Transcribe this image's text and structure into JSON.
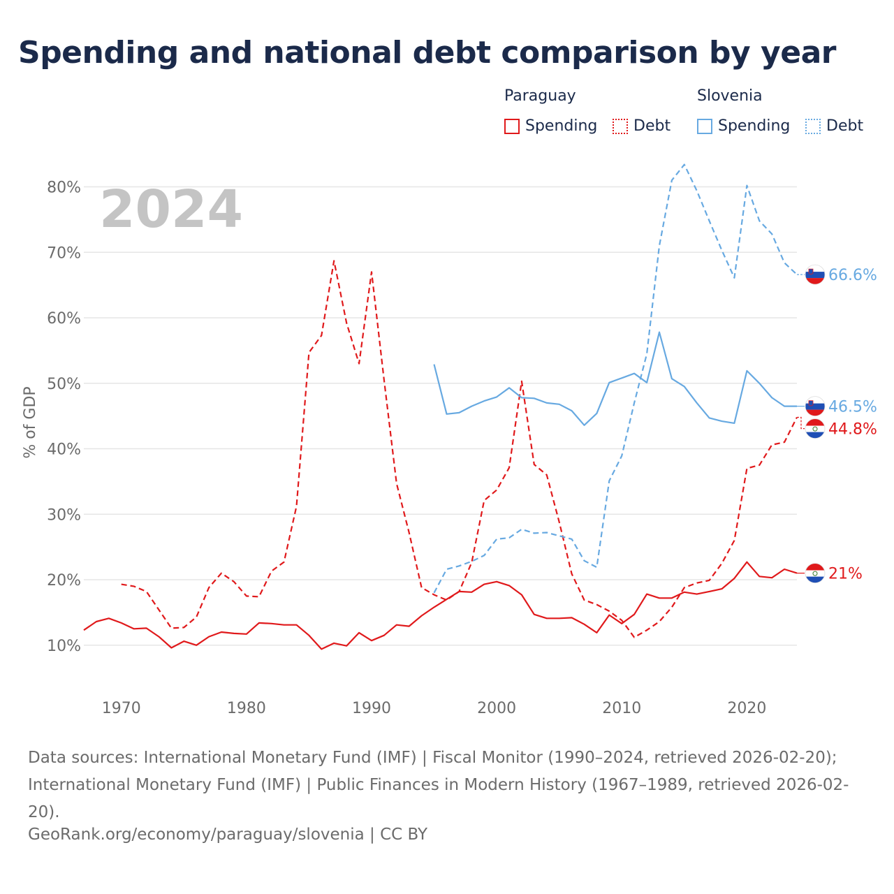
{
  "title": "Spending and national debt comparison by year",
  "legend": {
    "group_a": "Paraguay",
    "group_b": "Slovenia",
    "spending": "Spending",
    "debt": "Debt"
  },
  "colors": {
    "paraguay": "#e0191b",
    "slovenia": "#67a9e1",
    "grid": "#e6e6e6",
    "axis_text": "#6b6b6b",
    "year_watermark": "#c4c4c4"
  },
  "source_text": "Data sources: International Monetary Fund (IMF) | Fiscal Monitor (1990–2024, retrieved 2026-02-20); International Monetary Fund (IMF) | Public Finances in Modern History (1967–1989, retrieved 2026-02-20).",
  "attribution": "GeoRank.org/economy/paraguay/slovenia | CC BY",
  "chart_data": {
    "type": "line",
    "title": "Spending and national debt comparison by year",
    "year_label": "2024",
    "xlabel": "",
    "ylabel": "% of GDP",
    "xlim": [
      1967,
      2024
    ],
    "ylim": [
      4,
      84
    ],
    "x_ticks": [
      1970,
      1980,
      1990,
      2000,
      2010,
      2020
    ],
    "y_ticks": [
      10,
      20,
      30,
      40,
      50,
      60,
      70,
      80
    ],
    "y_tick_labels": [
      "10%",
      "20%",
      "30%",
      "40%",
      "50%",
      "60%",
      "70%",
      "80%"
    ],
    "grid": true,
    "legend_position": "top-right",
    "series": [
      {
        "name": "Paraguay Spending",
        "country": "Paraguay",
        "metric": "Spending",
        "style": "solid",
        "end_label": "21%",
        "x": [
          1967,
          1968,
          1969,
          1970,
          1971,
          1972,
          1973,
          1974,
          1975,
          1976,
          1977,
          1978,
          1979,
          1980,
          1981,
          1982,
          1983,
          1984,
          1985,
          1986,
          1987,
          1988,
          1989,
          1990,
          1991,
          1992,
          1993,
          1994,
          1995,
          1996,
          1997,
          1998,
          1999,
          2000,
          2001,
          2002,
          2003,
          2004,
          2005,
          2006,
          2007,
          2008,
          2009,
          2010,
          2011,
          2012,
          2013,
          2014,
          2015,
          2016,
          2017,
          2018,
          2019,
          2020,
          2021,
          2022,
          2023,
          2024
        ],
        "values": [
          12.3,
          13.6,
          14.1,
          13.4,
          12.5,
          12.6,
          11.3,
          9.6,
          10.6,
          10.0,
          11.3,
          12.0,
          11.8,
          11.7,
          13.4,
          13.3,
          13.1,
          13.1,
          11.5,
          9.4,
          10.3,
          9.9,
          11.9,
          10.7,
          11.5,
          13.1,
          12.9,
          14.5,
          15.8,
          17.0,
          18.2,
          18.1,
          19.3,
          19.7,
          19.1,
          17.7,
          14.7,
          14.1,
          14.1,
          14.2,
          13.2,
          11.9,
          14.6,
          13.3,
          14.7,
          17.8,
          17.2,
          17.2,
          18.1,
          17.8,
          18.2,
          18.6,
          20.2,
          22.7,
          20.5,
          20.3,
          21.6,
          21.0
        ]
      },
      {
        "name": "Paraguay Debt",
        "country": "Paraguay",
        "metric": "Debt",
        "style": "dashed",
        "end_label": "44.8%",
        "x": [
          1970,
          1971,
          1972,
          1973,
          1974,
          1975,
          1976,
          1977,
          1978,
          1979,
          1980,
          1981,
          1982,
          1983,
          1984,
          1985,
          1986,
          1987,
          1988,
          1989,
          1990,
          1991,
          1992,
          1993,
          1994,
          1995,
          1996,
          1997,
          1998,
          1999,
          2000,
          2001,
          2002,
          2003,
          2004,
          2005,
          2006,
          2007,
          2008,
          2009,
          2010,
          2011,
          2012,
          2013,
          2014,
          2015,
          2016,
          2017,
          2018,
          2019,
          2020,
          2021,
          2022,
          2023,
          2024
        ],
        "values": [
          19.3,
          19.0,
          18.2,
          15.4,
          12.6,
          12.7,
          14.3,
          18.8,
          21.0,
          19.7,
          17.5,
          17.4,
          21.3,
          22.7,
          31.2,
          54.7,
          57.3,
          68.7,
          59.2,
          53.0,
          67.0,
          50.5,
          34.7,
          27.2,
          18.8,
          17.7,
          16.9,
          18.2,
          22.6,
          32.1,
          33.7,
          37.1,
          50.3,
          37.6,
          36.0,
          28.8,
          20.9,
          16.9,
          16.2,
          15.2,
          13.8,
          11.2,
          12.3,
          13.6,
          15.8,
          18.8,
          19.5,
          19.9,
          22.5,
          26.0,
          37.0,
          37.5,
          40.6,
          41.0,
          44.8
        ]
      },
      {
        "name": "Slovenia Spending",
        "country": "Slovenia",
        "metric": "Spending",
        "style": "solid",
        "end_label": "46.5%",
        "x": [
          1995,
          1996,
          1997,
          1998,
          1999,
          2000,
          2001,
          2002,
          2003,
          2004,
          2005,
          2006,
          2007,
          2008,
          2009,
          2010,
          2011,
          2012,
          2013,
          2014,
          2015,
          2016,
          2017,
          2018,
          2019,
          2020,
          2021,
          2022,
          2023,
          2024
        ],
        "values": [
          52.9,
          45.3,
          45.5,
          46.5,
          47.3,
          47.9,
          49.3,
          47.8,
          47.7,
          47.0,
          46.8,
          45.8,
          43.6,
          45.4,
          50.1,
          50.8,
          51.5,
          50.1,
          57.8,
          50.7,
          49.5,
          47.0,
          44.7,
          44.2,
          43.9,
          51.9,
          50.0,
          47.8,
          46.5,
          46.5
        ]
      },
      {
        "name": "Slovenia Debt",
        "country": "Slovenia",
        "metric": "Debt",
        "style": "dashed",
        "end_label": "66.6%",
        "x": [
          1995,
          1996,
          1997,
          1998,
          1999,
          2000,
          2001,
          2002,
          2003,
          2004,
          2005,
          2006,
          2007,
          2008,
          2009,
          2010,
          2011,
          2012,
          2013,
          2014,
          2015,
          2016,
          2017,
          2018,
          2019,
          2020,
          2021,
          2022,
          2023,
          2024
        ],
        "values": [
          18.0,
          21.6,
          22.1,
          22.8,
          23.7,
          26.2,
          26.4,
          27.7,
          27.1,
          27.2,
          26.7,
          26.2,
          22.9,
          21.9,
          35.1,
          38.9,
          47.0,
          54.5,
          71.0,
          81.0,
          83.4,
          79.4,
          74.8,
          70.3,
          66.1,
          80.2,
          74.8,
          72.8,
          68.4,
          66.6
        ]
      }
    ]
  }
}
